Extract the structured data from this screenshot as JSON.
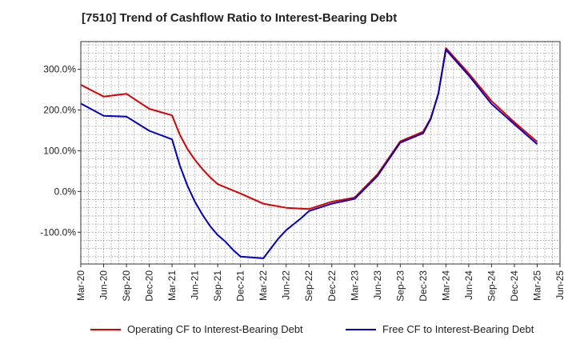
{
  "chart_data": {
    "type": "line",
    "title": "[7510]  Trend of Cashflow Ratio to Interest-Bearing Debt",
    "xlabel": "",
    "ylabel": "",
    "x_ticks": [
      "Mar-20",
      "Jun-20",
      "Sep-20",
      "Dec-20",
      "Mar-21",
      "Jun-21",
      "Sep-21",
      "Dec-21",
      "Mar-22",
      "Jun-22",
      "Sep-22",
      "Dec-22",
      "Mar-23",
      "Jun-23",
      "Sep-23",
      "Dec-23",
      "Mar-24",
      "Jun-24",
      "Sep-24",
      "Dec-24",
      "Mar-25",
      "Jun-25"
    ],
    "y_ticks": [
      -100,
      0,
      100,
      200,
      300
    ],
    "y_tick_labels": [
      "-100.0%",
      "0.0%",
      "100.0%",
      "200.0%",
      "300.0%"
    ],
    "ylim": [
      -178,
      368
    ],
    "grid": true,
    "legend_position": "bottom",
    "series": [
      {
        "name": "Operating CF to Interest-Bearing Debt",
        "color": "#dd0000",
        "points": [
          [
            "Mar-20",
            262
          ],
          [
            "Jun-20",
            233
          ],
          [
            "Sep-20",
            240
          ],
          [
            "Dec-20",
            203
          ],
          [
            "Mar-21",
            187
          ],
          [
            "Apr-21",
            140
          ],
          [
            "May-21",
            105
          ],
          [
            "Jun-21",
            78
          ],
          [
            "Jul-21",
            55
          ],
          [
            "Aug-21",
            35
          ],
          [
            "Sep-21",
            18
          ],
          [
            "Dec-21",
            -5
          ],
          [
            "Mar-22",
            -30
          ],
          [
            "Jun-22",
            -40
          ],
          [
            "Sep-22",
            -43
          ],
          [
            "Dec-22",
            -25
          ],
          [
            "Mar-23",
            -15
          ],
          [
            "Jun-23",
            42
          ],
          [
            "Sep-23",
            123
          ],
          [
            "Dec-23",
            147
          ],
          [
            "Jan-24",
            180
          ],
          [
            "Feb-24",
            240
          ],
          [
            "Mar-24",
            352
          ],
          [
            "Jun-24",
            290
          ],
          [
            "Sep-24",
            222
          ],
          [
            "Dec-24",
            170
          ],
          [
            "Mar-25",
            122
          ]
        ]
      },
      {
        "name": "Free CF to Interest-Bearing Debt",
        "color": "#0000cc",
        "points": [
          [
            "Mar-20",
            216
          ],
          [
            "Jun-20",
            186
          ],
          [
            "Sep-20",
            184
          ],
          [
            "Dec-20",
            149
          ],
          [
            "Mar-21",
            128
          ],
          [
            "Apr-21",
            65
          ],
          [
            "May-21",
            15
          ],
          [
            "Jun-21",
            -25
          ],
          [
            "Jul-21",
            -57
          ],
          [
            "Aug-21",
            -85
          ],
          [
            "Sep-21",
            -107
          ],
          [
            "Oct-21",
            -123
          ],
          [
            "Nov-21",
            -143
          ],
          [
            "Dec-21",
            -160
          ],
          [
            "Mar-22",
            -164
          ],
          [
            "May-22",
            -115
          ],
          [
            "Jun-22",
            -95
          ],
          [
            "Aug-22",
            -65
          ],
          [
            "Sep-22",
            -48
          ],
          [
            "Dec-22",
            -30
          ],
          [
            "Mar-23",
            -18
          ],
          [
            "Jun-23",
            38
          ],
          [
            "Sep-23",
            120
          ],
          [
            "Dec-23",
            143
          ],
          [
            "Jan-24",
            178
          ],
          [
            "Feb-24",
            240
          ],
          [
            "Mar-24",
            348
          ],
          [
            "Jun-24",
            285
          ],
          [
            "Sep-24",
            215
          ],
          [
            "Dec-24",
            165
          ],
          [
            "Mar-25",
            116
          ]
        ]
      }
    ]
  }
}
